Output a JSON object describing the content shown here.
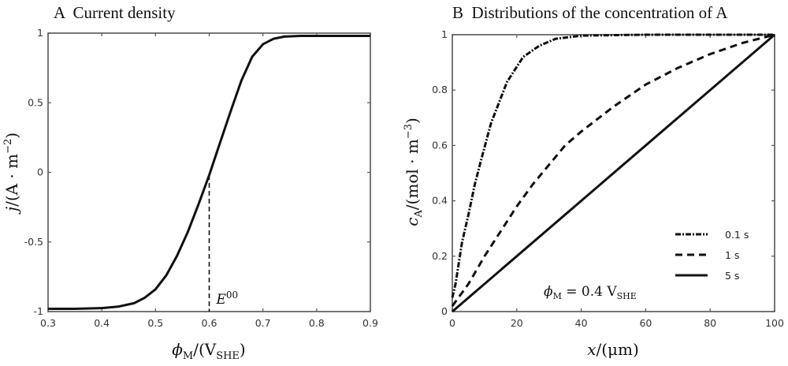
{
  "chart_data": [
    {
      "type": "line",
      "panel": "A",
      "title": "A  Current density",
      "xlabel": "ϕM/(VSHE)",
      "xlabel_parts": {
        "main": "ϕ",
        "sub1": "M",
        "mid": "/(V",
        "sub2": "SHE",
        "end": ")"
      },
      "ylabel": "j/(A · m−2)",
      "ylabel_parts": {
        "main": "j",
        "mid": "/(A · m",
        "sup": "−2",
        "end": ")"
      },
      "xlim": [
        0.3,
        0.9
      ],
      "ylim": [
        -1,
        1
      ],
      "xticks": [
        0.3,
        0.4,
        0.5,
        0.6,
        0.7,
        0.8,
        0.9
      ],
      "xtick_labels": [
        "0.3",
        "0.4",
        "0.5",
        "0.6",
        "0.7",
        "0.8",
        "0.9"
      ],
      "yticks": [
        -1,
        -0.5,
        0,
        0.5,
        1
      ],
      "ytick_labels": [
        "-1",
        "-0.5",
        "0",
        "0.5",
        "1"
      ],
      "grid": false,
      "series": [
        {
          "name": "j",
          "style": "solid",
          "x": [
            0.3,
            0.35,
            0.4,
            0.43,
            0.46,
            0.48,
            0.5,
            0.52,
            0.54,
            0.56,
            0.58,
            0.6,
            0.62,
            0.64,
            0.66,
            0.68,
            0.7,
            0.72,
            0.74,
            0.77,
            0.8,
            0.85,
            0.9
          ],
          "y": [
            -0.98,
            -0.98,
            -0.975,
            -0.965,
            -0.94,
            -0.9,
            -0.84,
            -0.74,
            -0.6,
            -0.43,
            -0.23,
            -0.02,
            0.21,
            0.44,
            0.66,
            0.83,
            0.92,
            0.96,
            0.975,
            0.98,
            0.98,
            0.98,
            0.98
          ]
        }
      ],
      "annotations": [
        {
          "text": "E",
          "sup": "00",
          "x": 0.6,
          "marker": "dashed vertical line from y=-1 to y=0"
        }
      ]
    },
    {
      "type": "line",
      "panel": "B",
      "title": "B  Distributions of the concentration of A",
      "xlabel": "x/(μm)",
      "xlabel_parts": {
        "main": "x",
        "end": "/(μm)"
      },
      "ylabel": "cA/(mol · m−3)",
      "ylabel_parts": {
        "main": "c",
        "sub": "A",
        "mid": "/(mol · m",
        "sup": "−3",
        "end": ")"
      },
      "xlim": [
        0,
        100
      ],
      "ylim": [
        0,
        1
      ],
      "xticks": [
        0,
        20,
        40,
        60,
        80,
        100
      ],
      "xtick_labels": [
        "0",
        "20",
        "40",
        "60",
        "80",
        "100"
      ],
      "yticks": [
        0,
        0.2,
        0.4,
        0.6,
        0.8,
        1
      ],
      "ytick_labels": [
        "0",
        "0.2",
        "0.4",
        "0.6",
        "0.8",
        "1"
      ],
      "grid": false,
      "legend_position": "bottom-right",
      "series": [
        {
          "name": "0.1 s",
          "style": "dashdot",
          "x": [
            0,
            1,
            3,
            5,
            7,
            9,
            12,
            17,
            22,
            27,
            32,
            40,
            60,
            100
          ],
          "y": [
            0.05,
            0.1,
            0.25,
            0.35,
            0.46,
            0.55,
            0.68,
            0.83,
            0.92,
            0.96,
            0.985,
            0.997,
            1,
            1
          ]
        },
        {
          "name": "1 s",
          "style": "dashed",
          "x": [
            0,
            5,
            10,
            15,
            20,
            25,
            30,
            35,
            40,
            50,
            60,
            70,
            80,
            90,
            100
          ],
          "y": [
            0.02,
            0.1,
            0.2,
            0.29,
            0.38,
            0.46,
            0.53,
            0.6,
            0.65,
            0.74,
            0.82,
            0.88,
            0.93,
            0.97,
            1
          ]
        },
        {
          "name": "5 s",
          "style": "solid",
          "x": [
            0,
            100
          ],
          "y": [
            0,
            1
          ]
        }
      ],
      "annotations": [
        {
          "text": "ϕM = 0.4 VSHE",
          "parts": {
            "main": "ϕ",
            "sub1": "M",
            "mid": " = 0.4 V",
            "sub2": "SHE"
          }
        }
      ]
    }
  ]
}
